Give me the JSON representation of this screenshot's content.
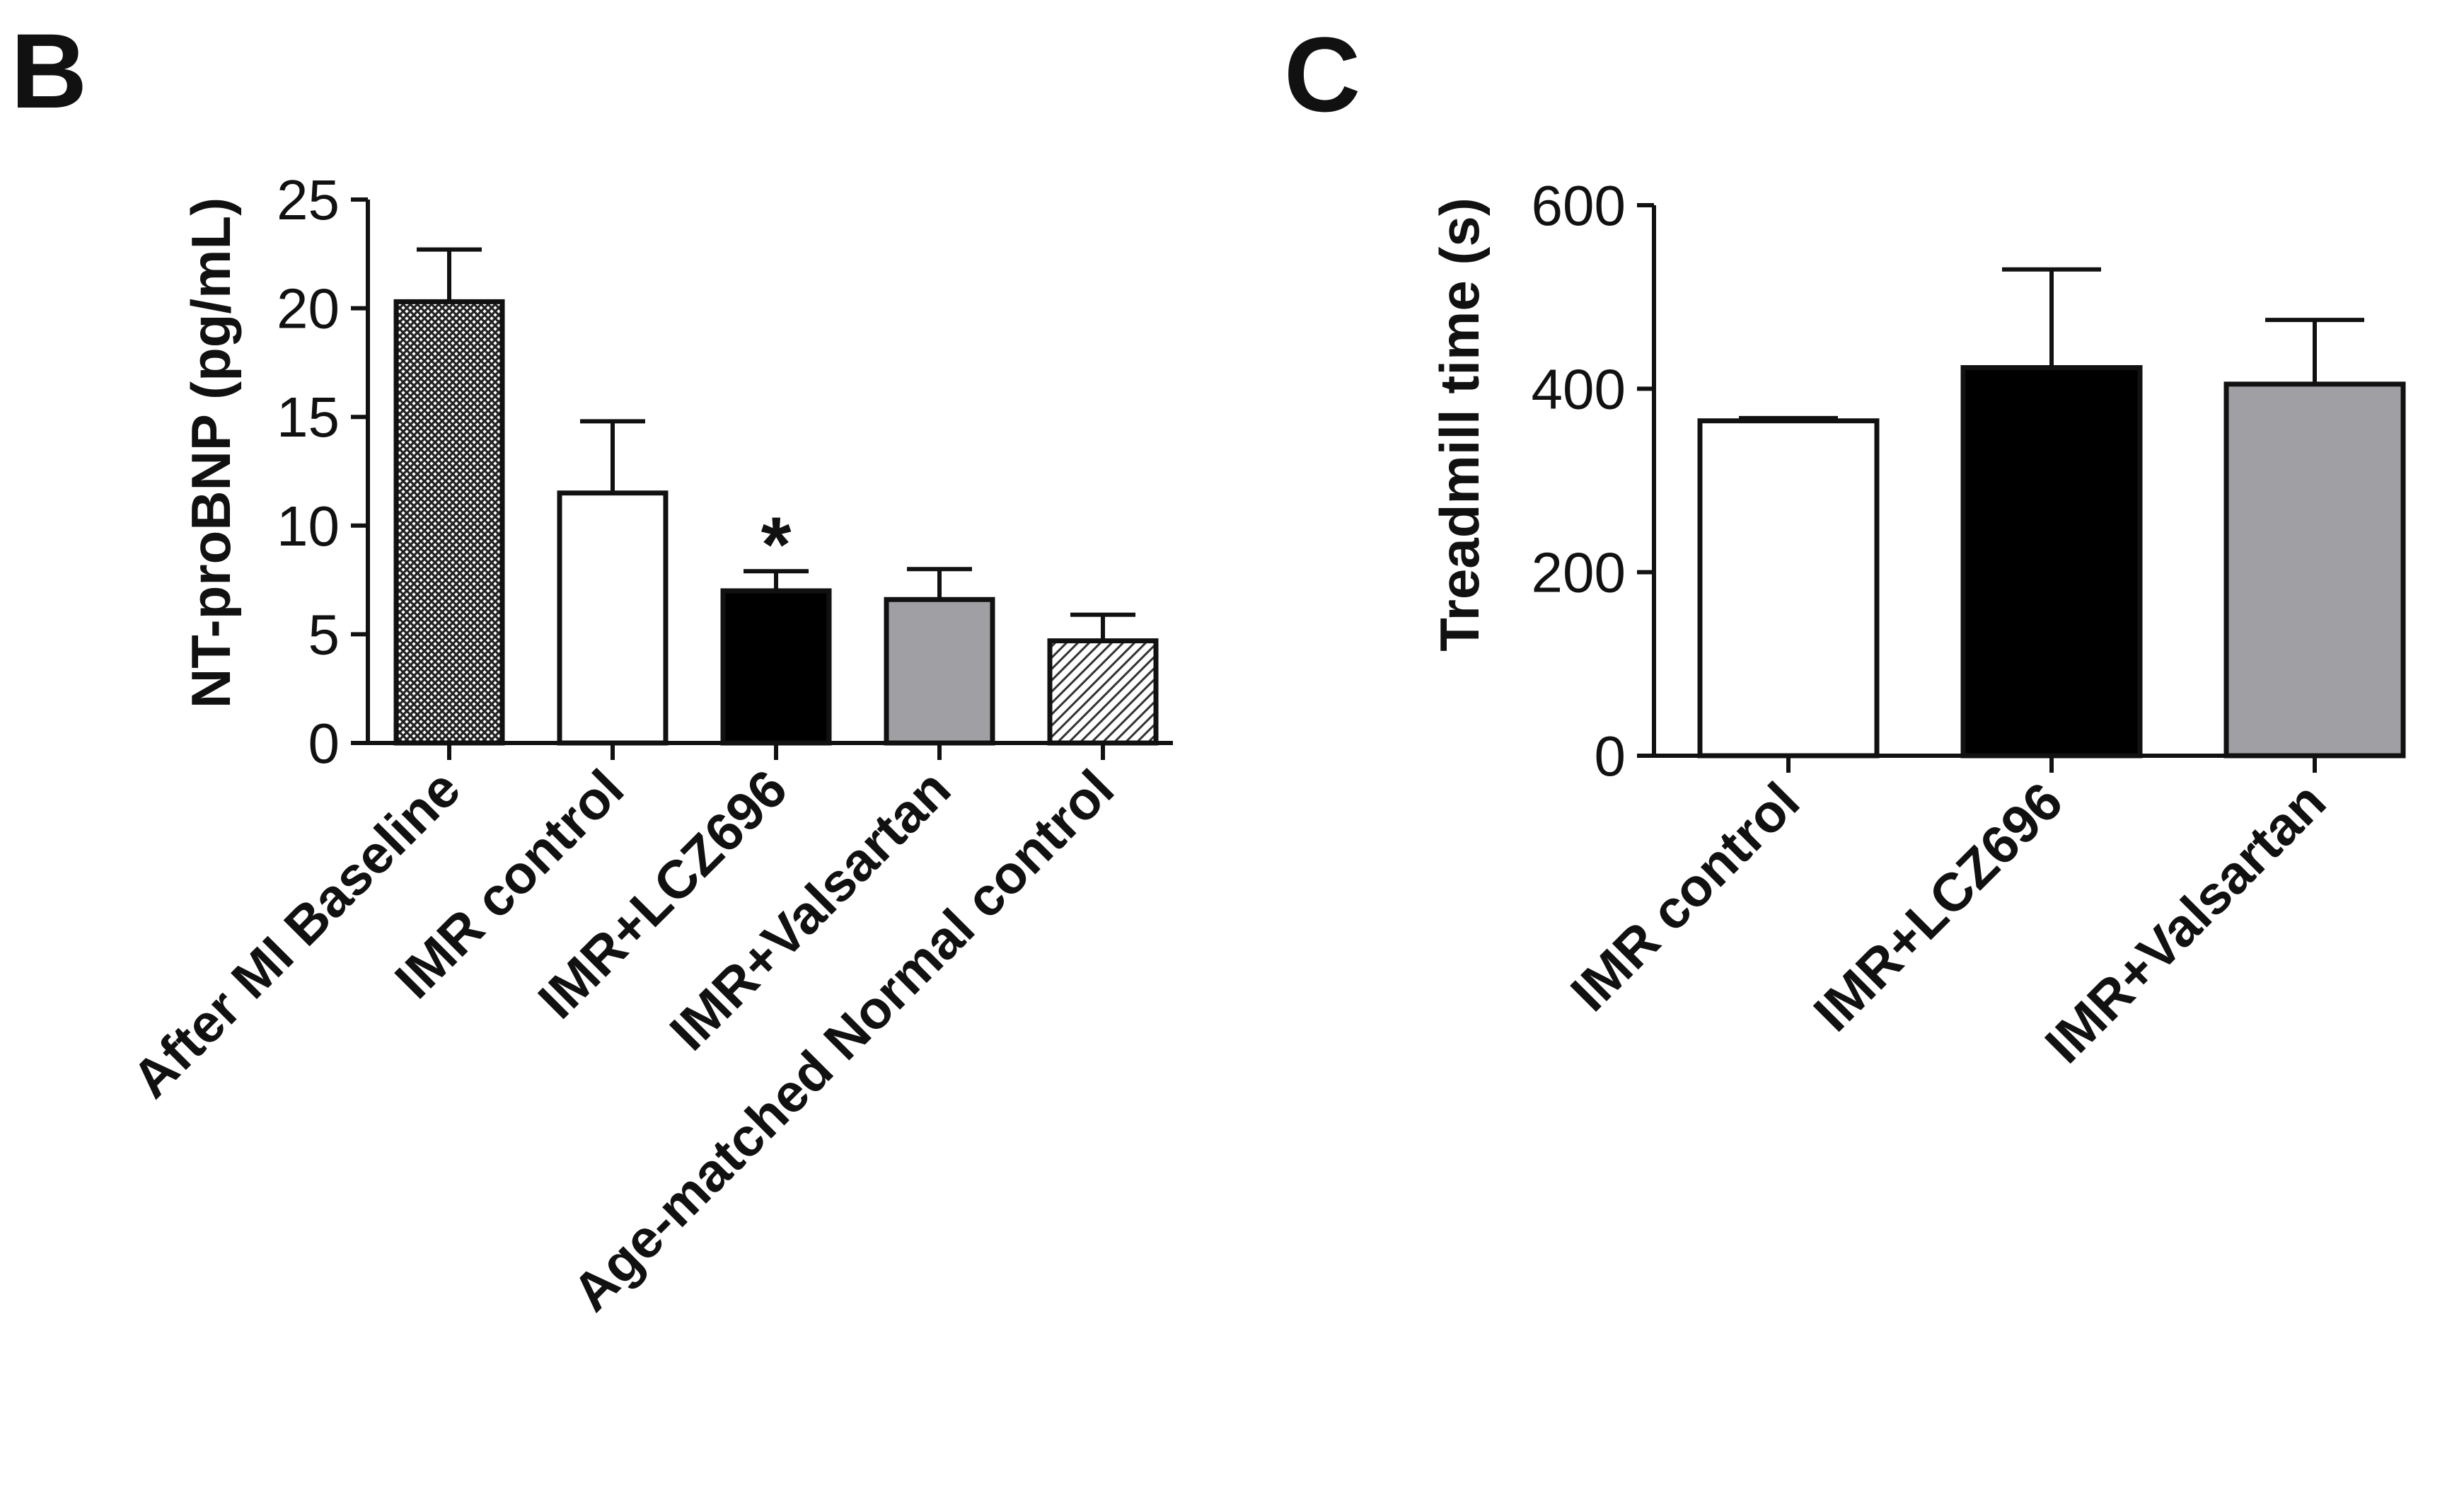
{
  "figure": {
    "panels": [
      {
        "letter": "B"
      },
      {
        "letter": "C"
      }
    ]
  },
  "chart_data": [
    {
      "panel": "B",
      "type": "bar",
      "title": "",
      "xlabel": "",
      "ylabel": "NT-proBNP (pg/mL)",
      "ylim": [
        0,
        25
      ],
      "yticks": [
        0,
        5,
        10,
        15,
        20,
        25
      ],
      "grid": false,
      "categories": [
        "After MI Baseline",
        "IMR control",
        "IMR+LCZ696",
        "IMR+Valsartan",
        "Age-matched Normal control"
      ],
      "values": [
        20.3,
        11.5,
        7.0,
        6.6,
        4.7
      ],
      "errors": [
        2.4,
        3.3,
        0.9,
        1.4,
        1.2
      ],
      "fills": [
        "crosshatch",
        "#ffffff",
        "#000000",
        "#a0a0a4",
        "diagonal-hatch"
      ],
      "annotations": [
        {
          "category": "IMR+LCZ696",
          "text": "*"
        }
      ]
    },
    {
      "panel": "C",
      "type": "bar",
      "title": "",
      "xlabel": "",
      "ylabel": "Treadmill time (s)",
      "ylim": [
        0,
        600
      ],
      "yticks": [
        0,
        200,
        400,
        600
      ],
      "grid": false,
      "categories": [
        "IMR control",
        "IMR+LCZ696",
        "IMR+Valsartan"
      ],
      "values": [
        365,
        423,
        405
      ],
      "errors": [
        3,
        107,
        70
      ],
      "fills": [
        "#ffffff",
        "#000000",
        "#a0a0a4"
      ]
    }
  ]
}
